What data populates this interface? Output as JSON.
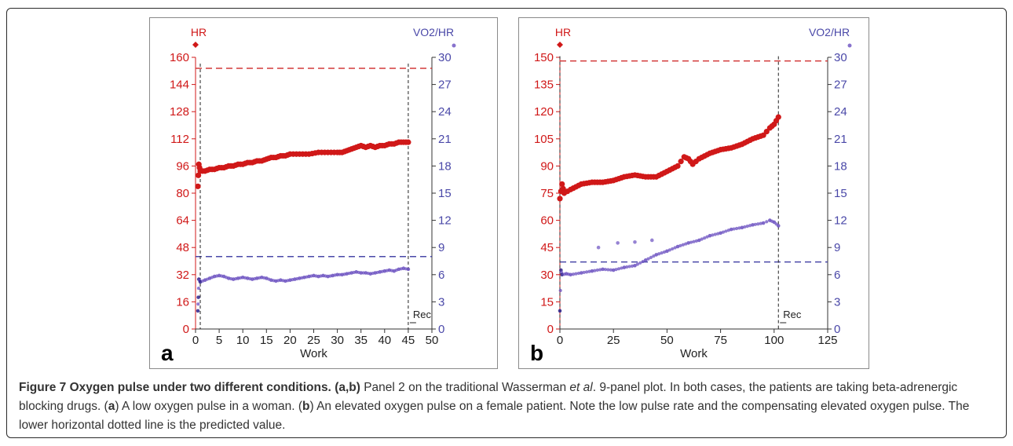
{
  "chart_data": [
    {
      "panel_label": "a",
      "type": "scatter",
      "xlabel": "Work",
      "xlim": [
        0,
        50
      ],
      "x_ticks": [
        "0",
        "5",
        "10",
        "15",
        "20",
        "25",
        "30",
        "35",
        "40",
        "45",
        "50"
      ],
      "left_axis": {
        "label": "HR",
        "ylim": [
          0,
          160
        ],
        "ticks": [
          "0",
          "16",
          "32",
          "48",
          "64",
          "80",
          "96",
          "112",
          "128",
          "144",
          "160"
        ]
      },
      "right_axis": {
        "label": "VO2/HR",
        "ylim": [
          0,
          30
        ],
        "ticks": [
          "0",
          "3",
          "6",
          "9",
          "12",
          "15",
          "18",
          "21",
          "24",
          "27",
          "30"
        ]
      },
      "annotation": "Rec",
      "reference_lines": {
        "hr_predicted": 153.5,
        "vo2hr_predicted": 8.0,
        "work_start": 1,
        "work_end": 45
      },
      "series": [
        {
          "axis": "left",
          "points": [
            [
              0.5,
              84
            ],
            [
              0.7,
              97
            ],
            [
              1,
              93
            ],
            [
              2,
              93
            ],
            [
              3,
              94
            ],
            [
              4,
              94
            ],
            [
              5,
              95
            ],
            [
              6,
              95
            ],
            [
              7,
              96
            ],
            [
              8,
              96
            ],
            [
              9,
              97
            ],
            [
              10,
              97
            ],
            [
              11,
              98
            ],
            [
              12,
              98
            ],
            [
              13,
              99
            ],
            [
              14,
              99
            ],
            [
              15,
              100
            ],
            [
              16,
              101
            ],
            [
              17,
              101
            ],
            [
              18,
              102
            ],
            [
              19,
              102
            ],
            [
              20,
              103
            ],
            [
              22,
              103
            ],
            [
              24,
              103
            ],
            [
              26,
              104
            ],
            [
              28,
              104
            ],
            [
              30,
              104
            ],
            [
              31,
              104
            ],
            [
              32,
              105
            ],
            [
              33,
              106
            ],
            [
              34,
              107
            ],
            [
              35,
              108
            ],
            [
              36,
              107
            ],
            [
              37,
              108
            ],
            [
              38,
              107
            ],
            [
              39,
              108
            ],
            [
              40,
              108
            ],
            [
              41,
              109
            ],
            [
              42,
              109
            ],
            [
              43,
              110
            ],
            [
              44,
              110
            ],
            [
              45,
              110
            ]
          ]
        },
        {
          "axis": "right",
          "points": [
            [
              0.5,
              2.0
            ],
            [
              0.6,
              3.5
            ],
            [
              0.7,
              5.5
            ],
            [
              1,
              5.2
            ],
            [
              2,
              5.4
            ],
            [
              3,
              5.6
            ],
            [
              4,
              5.8
            ],
            [
              5,
              5.9
            ],
            [
              6,
              5.8
            ],
            [
              7,
              5.6
            ],
            [
              8,
              5.5
            ],
            [
              9,
              5.6
            ],
            [
              10,
              5.7
            ],
            [
              11,
              5.6
            ],
            [
              12,
              5.5
            ],
            [
              13,
              5.6
            ],
            [
              14,
              5.7
            ],
            [
              15,
              5.6
            ],
            [
              16,
              5.4
            ],
            [
              17,
              5.3
            ],
            [
              18,
              5.4
            ],
            [
              19,
              5.3
            ],
            [
              20,
              5.4
            ],
            [
              21,
              5.5
            ],
            [
              22,
              5.6
            ],
            [
              23,
              5.7
            ],
            [
              24,
              5.8
            ],
            [
              25,
              5.9
            ],
            [
              26,
              5.8
            ],
            [
              27,
              5.9
            ],
            [
              28,
              5.8
            ],
            [
              29,
              5.9
            ],
            [
              30,
              6.0
            ],
            [
              31,
              6.0
            ],
            [
              32,
              6.1
            ],
            [
              33,
              6.2
            ],
            [
              34,
              6.3
            ],
            [
              35,
              6.2
            ],
            [
              36,
              6.2
            ],
            [
              37,
              6.1
            ],
            [
              38,
              6.2
            ],
            [
              39,
              6.3
            ],
            [
              40,
              6.4
            ],
            [
              41,
              6.5
            ],
            [
              42,
              6.4
            ],
            [
              43,
              6.6
            ],
            [
              44,
              6.7
            ],
            [
              45,
              6.6
            ]
          ]
        }
      ]
    },
    {
      "panel_label": "b",
      "type": "scatter",
      "xlabel": "Work",
      "xlim": [
        0,
        125
      ],
      "x_ticks": [
        "0",
        "25",
        "50",
        "75",
        "100",
        "125"
      ],
      "left_axis": {
        "label": "HR",
        "ylim": [
          0,
          150
        ],
        "ticks": [
          "0",
          "15",
          "30",
          "45",
          "60",
          "75",
          "90",
          "105",
          "120",
          "135",
          "150"
        ]
      },
      "right_axis": {
        "label": "VO2/HR",
        "ylim": [
          0,
          30
        ],
        "ticks": [
          "0",
          "3",
          "6",
          "9",
          "12",
          "15",
          "18",
          "21",
          "24",
          "27",
          "30"
        ]
      },
      "annotation": "Rec",
      "reference_lines": {
        "hr_predicted": 148,
        "vo2hr_predicted": 7.4,
        "work_start": 0,
        "work_end": 102
      },
      "series": [
        {
          "axis": "left",
          "points": [
            [
              0,
              72
            ],
            [
              1,
              80
            ],
            [
              2,
              75
            ],
            [
              5,
              77
            ],
            [
              10,
              80
            ],
            [
              15,
              81
            ],
            [
              20,
              81
            ],
            [
              25,
              82
            ],
            [
              30,
              84
            ],
            [
              35,
              85
            ],
            [
              40,
              84
            ],
            [
              45,
              84
            ],
            [
              50,
              87
            ],
            [
              55,
              90
            ],
            [
              58,
              95
            ],
            [
              60,
              94
            ],
            [
              62,
              91
            ],
            [
              65,
              94
            ],
            [
              70,
              97
            ],
            [
              75,
              99
            ],
            [
              80,
              100
            ],
            [
              85,
              102
            ],
            [
              90,
              105
            ],
            [
              95,
              107
            ],
            [
              98,
              111
            ],
            [
              100,
              113
            ],
            [
              102,
              117
            ]
          ]
        },
        {
          "axis": "right",
          "points": [
            [
              0,
              2.0
            ],
            [
              0.5,
              6.5
            ],
            [
              1,
              6.0
            ],
            [
              3,
              6.1
            ],
            [
              5,
              6.0
            ],
            [
              10,
              6.2
            ],
            [
              15,
              6.4
            ],
            [
              20,
              6.6
            ],
            [
              25,
              6.5
            ],
            [
              30,
              6.8
            ],
            [
              35,
              7.0
            ],
            [
              40,
              7.6
            ],
            [
              45,
              8.2
            ],
            [
              50,
              8.6
            ],
            [
              55,
              9.1
            ],
            [
              60,
              9.5
            ],
            [
              65,
              9.8
            ],
            [
              70,
              10.3
            ],
            [
              75,
              10.6
            ],
            [
              80,
              11.0
            ],
            [
              85,
              11.2
            ],
            [
              90,
              11.5
            ],
            [
              95,
              11.7
            ],
            [
              98,
              12.0
            ],
            [
              100,
              11.8
            ],
            [
              102,
              11.4
            ]
          ]
        },
        {
          "axis": "right",
          "outliers": true,
          "points": [
            [
              18,
              9.0
            ],
            [
              27,
              9.5
            ],
            [
              35,
              9.6
            ],
            [
              43,
              9.8
            ]
          ]
        }
      ]
    }
  ],
  "colors": {
    "hr": "#d01818",
    "vo2hr": "#6a4fc0",
    "vo2hr_dark": "#2a1f8a",
    "hr_ref": "#d23a3a",
    "vo2_ref": "#4a48a8",
    "axis": "#333333"
  },
  "caption": {
    "title": "Figure 7 Oxygen pulse under two different conditions.",
    "panels_ref": "(a,b)",
    "text_1": " Panel 2 on the traditional Wasserman ",
    "et_al": "et al",
    "text_2": ". 9-panel plot. In both cases, the patients are taking beta-adrenergic blocking drugs. (",
    "label_a": "a",
    "text_3": ") A low oxygen pulse in a woman. (",
    "label_b": "b",
    "text_4": ") An elevated oxygen pulse on a female patient. Note the low pulse rate and the compensating elevated oxygen pulse. The lower horizontal dotted line is the predicted value."
  }
}
